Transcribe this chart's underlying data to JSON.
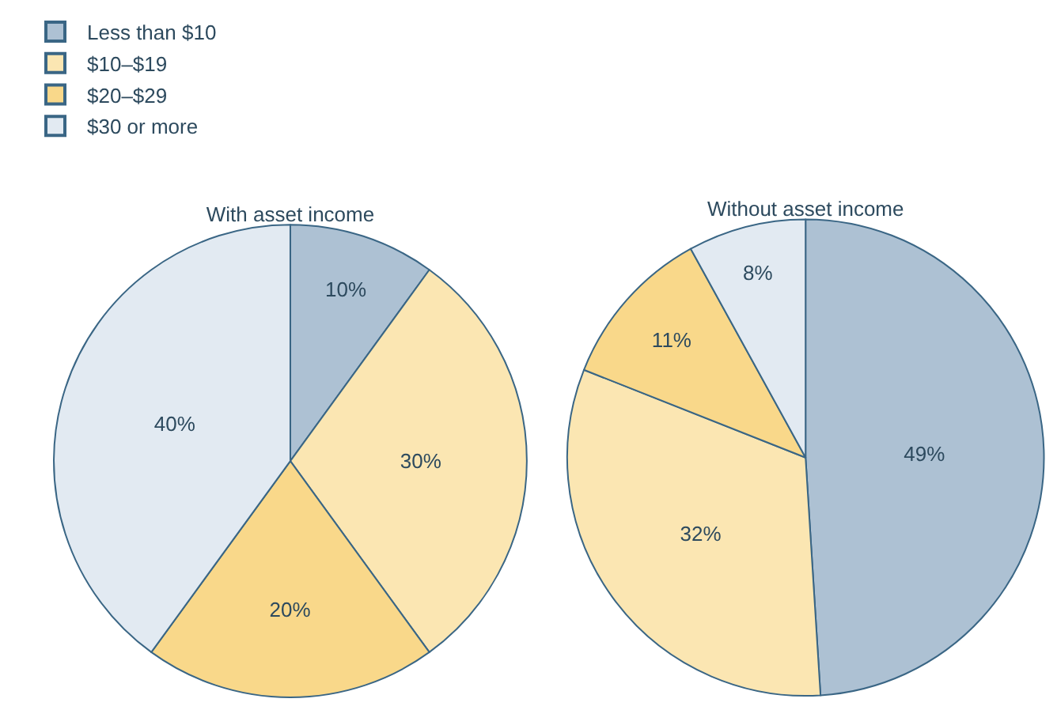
{
  "chart_data": [
    {
      "type": "pie",
      "title": "With asset income",
      "categories": [
        "Less than $10",
        "$10–$19",
        "$20–$29",
        "$30 or more"
      ],
      "values": [
        10,
        30,
        20,
        40
      ],
      "colors": [
        "#adc1d3",
        "#fbe6b2",
        "#f9d88a",
        "#e2eaf2"
      ],
      "value_labels": [
        "10%",
        "30%",
        "20%",
        "40%"
      ],
      "legend": "top left"
    },
    {
      "type": "pie",
      "title": "Without asset income",
      "categories": [
        null,
        null,
        null,
        null
      ],
      "values": [
        49,
        32,
        11,
        8
      ],
      "colors": [
        "#adc1d3",
        "#fbe6b2",
        "#f9d88a",
        "#e2eaf2"
      ],
      "value_labels": [
        "49%",
        "32%",
        "11%",
        "8%"
      ]
    }
  ]
}
